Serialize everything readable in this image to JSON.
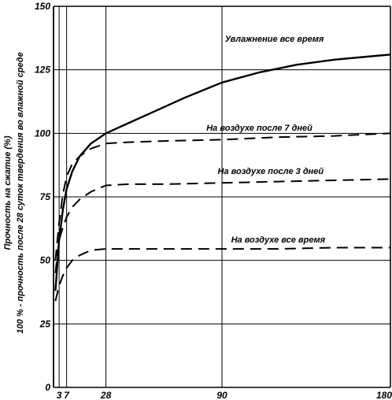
{
  "chart_data": {
    "type": "line",
    "title": "",
    "ylabel_lines": [
      "Прочность на сжатие (%)",
      "100 % - прочность после 28 суток  твердения во влажной среде"
    ],
    "xlabel": "",
    "xlim": [
      0,
      180
    ],
    "ylim": [
      0,
      150
    ],
    "x_ticks": [
      3,
      7,
      28,
      90,
      180
    ],
    "y_ticks": [
      0,
      25,
      50,
      75,
      100,
      125,
      150
    ],
    "grid": true,
    "series": [
      {
        "name": "Увлажнение все время",
        "style": "solid",
        "x": [
          1,
          3,
          5,
          7,
          10,
          14,
          20,
          28,
          40,
          55,
          70,
          90,
          110,
          130,
          150,
          165,
          180
        ],
        "y": [
          38,
          58,
          70,
          78,
          85,
          91,
          96,
          100,
          104,
          109,
          114,
          120,
          124,
          127,
          129,
          130,
          131
        ]
      },
      {
        "name": "На воздухе после 7 дней",
        "style": "dashed",
        "x": [
          1,
          3,
          5,
          7,
          10,
          14,
          20,
          28,
          40,
          60,
          90,
          120,
          150,
          180
        ],
        "y": [
          50,
          65,
          76,
          83,
          88,
          91,
          94,
          96,
          96.5,
          97,
          97.5,
          98.5,
          99,
          100
        ]
      },
      {
        "name": "На воздухе после 3 дней",
        "style": "dashed",
        "x": [
          1,
          3,
          5,
          7,
          10,
          14,
          20,
          28,
          40,
          60,
          90,
          120,
          150,
          180
        ],
        "y": [
          45,
          58,
          63,
          67,
          71,
          74,
          77,
          79.5,
          80,
          80,
          80.5,
          81,
          81.5,
          82
        ]
      },
      {
        "name": "На воздухе все время",
        "style": "dashed",
        "x": [
          1,
          3,
          5,
          7,
          10,
          14,
          20,
          28,
          40,
          60,
          90,
          120,
          150,
          180
        ],
        "y": [
          34,
          40,
          44,
          47,
          50,
          52,
          54,
          54.5,
          54.5,
          54.5,
          54.5,
          54.5,
          55,
          55
        ]
      }
    ],
    "annotations": [
      {
        "text": "Увлажнение все время",
        "x": 118,
        "y": 136
      },
      {
        "text": "На воздухе после 7 дней",
        "x": 110,
        "y": 101
      },
      {
        "text": "На воздухе после 3 дней",
        "x": 116,
        "y": 84
      },
      {
        "text": "На воздухе все время",
        "x": 120,
        "y": 57
      }
    ]
  }
}
